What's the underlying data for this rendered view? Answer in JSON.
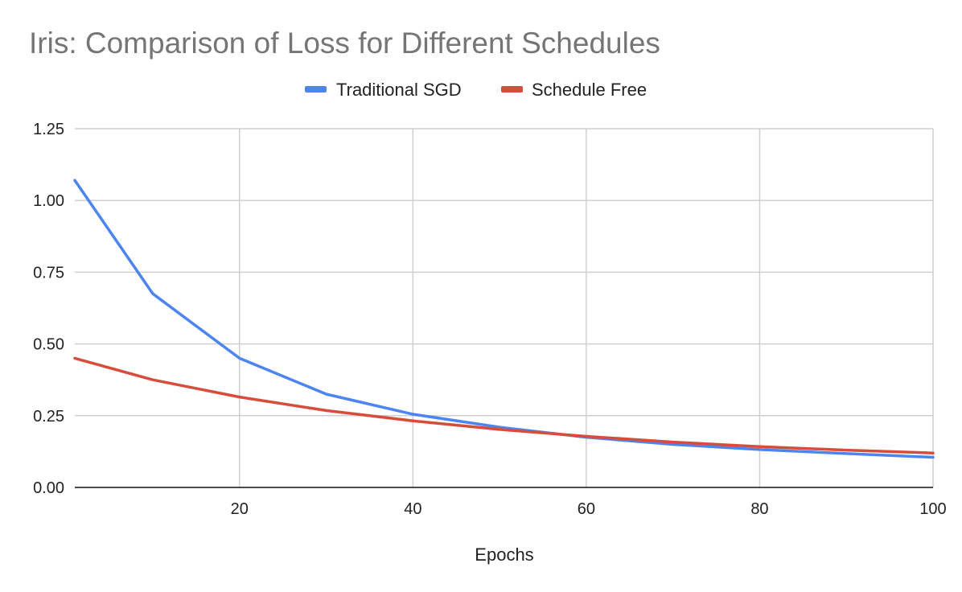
{
  "chart_data": {
    "type": "line",
    "title": "Iris: Comparison of Loss for Different Schedules",
    "xlabel": "Epochs",
    "ylabel": "",
    "xlim": [
      1,
      100
    ],
    "ylim": [
      0,
      1.25
    ],
    "x_ticks": [
      20,
      40,
      60,
      80,
      100
    ],
    "y_ticks": [
      0,
      0.25,
      0.5,
      0.75,
      1.0,
      1.25
    ],
    "y_tick_labels": [
      "0.00",
      "0.25",
      "0.50",
      "0.75",
      "1.00",
      "1.25"
    ],
    "grid": true,
    "legend_position": "top",
    "x": [
      1,
      10,
      20,
      30,
      40,
      50,
      60,
      70,
      80,
      90,
      100
    ],
    "series": [
      {
        "name": "Traditional SGD",
        "color": "#4c84f2",
        "values": [
          1.07,
          0.675,
          0.45,
          0.325,
          0.255,
          0.21,
          0.175,
          0.15,
          0.132,
          0.118,
          0.105
        ]
      },
      {
        "name": "Schedule Free",
        "color": "#d84c3c",
        "values": [
          0.45,
          0.375,
          0.315,
          0.268,
          0.232,
          0.202,
          0.178,
          0.158,
          0.142,
          0.13,
          0.12
        ]
      }
    ]
  }
}
